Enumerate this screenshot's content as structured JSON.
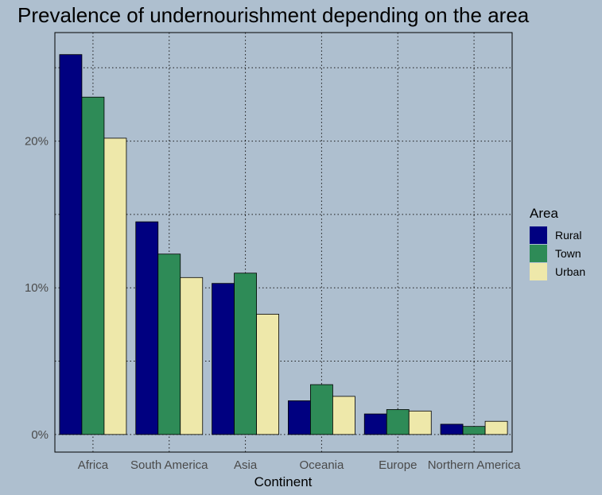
{
  "chart_data": {
    "type": "bar",
    "title": "Prevalence of undernourishment depending on the area",
    "xlabel": "Continent",
    "ylabel": "",
    "categories": [
      "Africa",
      "South America",
      "Asia",
      "Oceania",
      "Europe",
      "Northern America"
    ],
    "series": [
      {
        "name": "Rural",
        "color": "#000080",
        "values": [
          25.9,
          14.5,
          10.3,
          2.3,
          1.4,
          0.7
        ]
      },
      {
        "name": "Town",
        "color": "#2e8b57",
        "values": [
          23.0,
          12.3,
          11.0,
          3.4,
          1.7,
          0.55
        ]
      },
      {
        "name": "Urban",
        "color": "#eee8aa",
        "values": [
          20.2,
          10.7,
          8.2,
          2.6,
          1.6,
          0.9
        ]
      }
    ],
    "ylim": [
      -1.2,
      27.4
    ],
    "yticks": [
      0,
      10,
      20
    ],
    "ytick_labels": [
      "0%",
      "10%",
      "20%"
    ],
    "ygrid_minor": [
      5,
      15,
      25
    ],
    "grid": true,
    "legend": {
      "title": "Area",
      "position": "right"
    }
  }
}
